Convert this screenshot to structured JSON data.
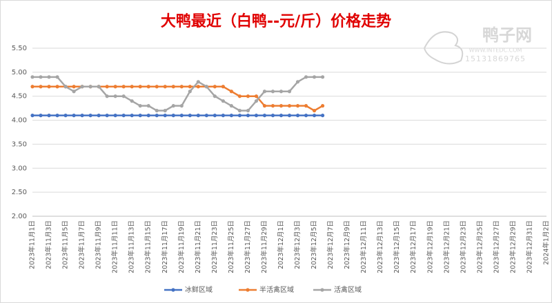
{
  "chart_data": {
    "type": "line",
    "title": "大鸭最近（白鸭--元/斤）价格走势",
    "watermark": {
      "name": "鸭子网",
      "site": "WWW.INTEDC.COM",
      "phone": "15131869765"
    },
    "categories": [
      "2023年11月1日",
      null,
      "2023年11月3日",
      null,
      "2023年11月5日",
      null,
      "2023年11月7日",
      null,
      "2023年11月9日",
      null,
      "2023年11月11日",
      null,
      "2023年11月13日",
      null,
      "2023年11月15日",
      null,
      "2023年11月17日",
      null,
      "2023年11月19日",
      null,
      "2023年11月21日",
      null,
      "2023年11月23日",
      null,
      "2023年11月25日",
      null,
      "2023年11月27日",
      null,
      "2023年11月29日",
      null,
      "2023年12月1日",
      null,
      "2023年12月3日",
      null,
      "2023年12月5日",
      null,
      "2023年12月7日",
      null,
      "2023年12月9日",
      null,
      "2023年12月11日",
      null,
      "2023年12月13日",
      null,
      "2023年12月15日",
      null,
      "2023年12月17日",
      null,
      "2023年12月19日",
      null,
      "2023年12月21日",
      null,
      "2023年12月23日",
      null,
      "2023年12月25日",
      null,
      "2023年12月27日",
      null,
      "2023年12月29日",
      null,
      "2023年12月31日",
      null,
      "2024年1月2日"
    ],
    "series": [
      {
        "name": "冰鲜区域",
        "color": "#4472c4",
        "values": [
          4.1,
          4.1,
          4.1,
          4.1,
          4.1,
          4.1,
          4.1,
          4.1,
          4.1,
          4.1,
          4.1,
          4.1,
          4.1,
          4.1,
          4.1,
          4.1,
          4.1,
          4.1,
          4.1,
          4.1,
          4.1,
          4.1,
          4.1,
          4.1,
          4.1,
          4.1,
          4.1,
          4.1,
          4.1,
          4.1,
          4.1,
          4.1,
          4.1,
          4.1,
          4.1,
          4.1,
          null,
          null,
          null,
          null,
          null,
          null,
          null,
          null,
          null,
          null,
          null,
          null,
          null,
          null,
          null,
          null,
          null,
          null,
          null,
          null,
          null,
          null,
          null,
          null,
          null,
          null,
          null
        ]
      },
      {
        "name": "半活禽区域",
        "color": "#ed7d31",
        "values": [
          4.7,
          4.7,
          4.7,
          4.7,
          4.7,
          4.7,
          4.7,
          4.7,
          4.7,
          4.7,
          4.7,
          4.7,
          4.7,
          4.7,
          4.7,
          4.7,
          4.7,
          4.7,
          4.7,
          4.7,
          4.7,
          4.7,
          4.7,
          4.7,
          4.6,
          4.5,
          4.5,
          4.5,
          4.3,
          4.3,
          4.3,
          4.3,
          4.3,
          4.3,
          4.2,
          4.3,
          null,
          null,
          null,
          null,
          null,
          null,
          null,
          null,
          null,
          null,
          null,
          null,
          null,
          null,
          null,
          null,
          null,
          null,
          null,
          null,
          null,
          null,
          null,
          null,
          null,
          null,
          null
        ]
      },
      {
        "name": "活禽区域",
        "color": "#a5a5a5",
        "values": [
          4.9,
          4.9,
          4.9,
          4.9,
          4.7,
          4.6,
          4.7,
          4.7,
          4.7,
          4.5,
          4.5,
          4.5,
          4.4,
          4.3,
          4.3,
          4.2,
          4.2,
          4.3,
          4.3,
          4.6,
          4.8,
          4.7,
          4.5,
          4.4,
          4.3,
          4.2,
          4.2,
          4.4,
          4.6,
          4.6,
          4.6,
          4.6,
          4.8,
          4.9,
          4.9,
          4.9,
          null,
          null,
          null,
          null,
          null,
          null,
          null,
          null,
          null,
          null,
          null,
          null,
          null,
          null,
          null,
          null,
          null,
          null,
          null,
          null,
          null,
          null,
          null,
          null,
          null,
          null,
          null
        ]
      }
    ],
    "ylim": [
      2,
      5.5
    ],
    "yticks": [
      {
        "value": 2,
        "label": "2.00"
      },
      {
        "value": 2.5,
        "label": "2.50"
      },
      {
        "value": 3,
        "label": "3.00"
      },
      {
        "value": 3.5,
        "label": "3.50"
      },
      {
        "value": 4,
        "label": "4.00"
      },
      {
        "value": 4.5,
        "label": "4.50"
      },
      {
        "value": 5,
        "label": "5.00"
      },
      {
        "value": 5.5,
        "label": "5.50"
      }
    ],
    "grid": true,
    "legend": "bottom"
  }
}
